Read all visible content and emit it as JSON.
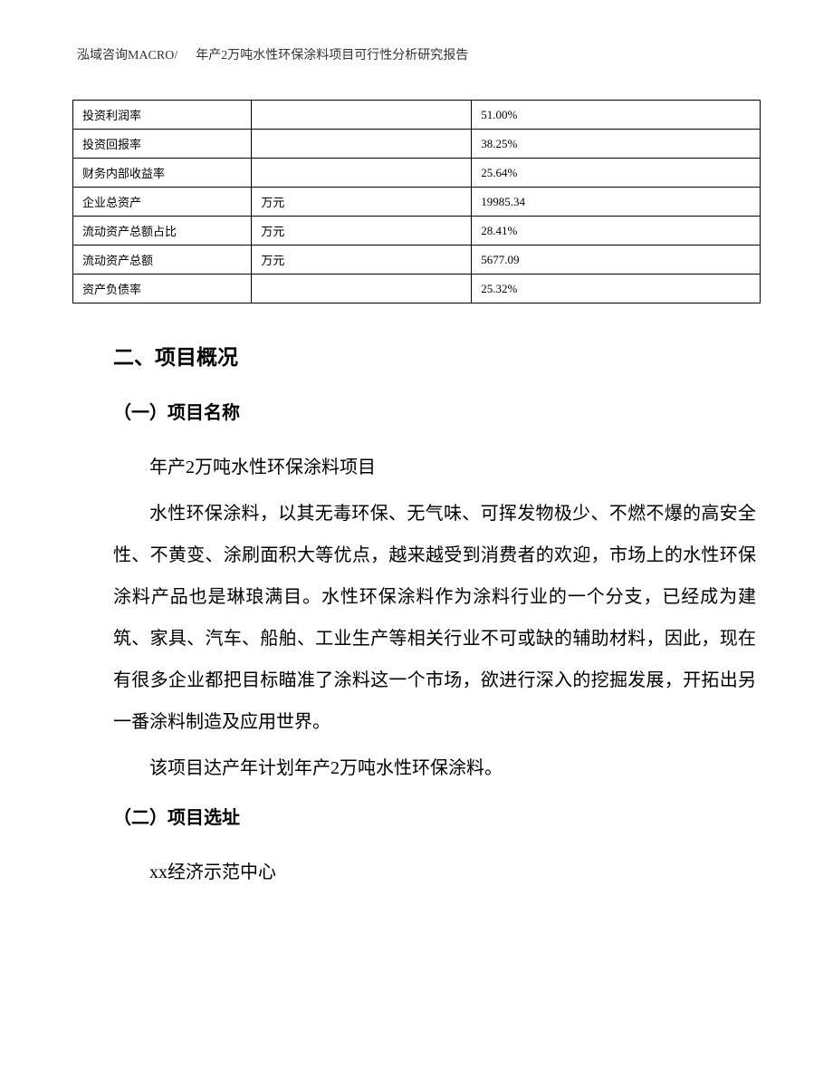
{
  "header": {
    "company": "泓域咨询MACRO/",
    "title": "年产2万吨水性环保涂料项目可行性分析研究报告"
  },
  "table": {
    "rows": [
      {
        "label": "投资利润率",
        "unit": "",
        "value": "51.00%"
      },
      {
        "label": "投资回报率",
        "unit": "",
        "value": "38.25%"
      },
      {
        "label": "财务内部收益率",
        "unit": "",
        "value": "25.64%"
      },
      {
        "label": "企业总资产",
        "unit": "万元",
        "value": "19985.34"
      },
      {
        "label": "流动资产总额占比",
        "unit": "万元",
        "value": "28.41%"
      },
      {
        "label": "流动资产总额",
        "unit": "万元",
        "value": "5677.09"
      },
      {
        "label": "资产负债率",
        "unit": "",
        "value": "25.32%"
      }
    ]
  },
  "sections": {
    "heading2": "二、项目概况",
    "sub1": {
      "title": "（一）项目名称",
      "line1": "年产2万吨水性环保涂料项目",
      "para1": "水性环保涂料，以其无毒环保、无气味、可挥发物极少、不燃不爆的高安全性、不黄变、涂刷面积大等优点，越来越受到消费者的欢迎，市场上的水性环保涂料产品也是琳琅满目。水性环保涂料作为涂料行业的一个分支，已经成为建筑、家具、汽车、船舶、工业生产等相关行业不可或缺的辅助材料，因此，现在有很多企业都把目标瞄准了涂料这一个市场，欲进行深入的挖掘发展，开拓出另一番涂料制造及应用世界。",
      "para2": "该项目达产年计划年产2万吨水性环保涂料。"
    },
    "sub2": {
      "title": "（二）项目选址",
      "line1": "xx经济示范中心"
    }
  }
}
